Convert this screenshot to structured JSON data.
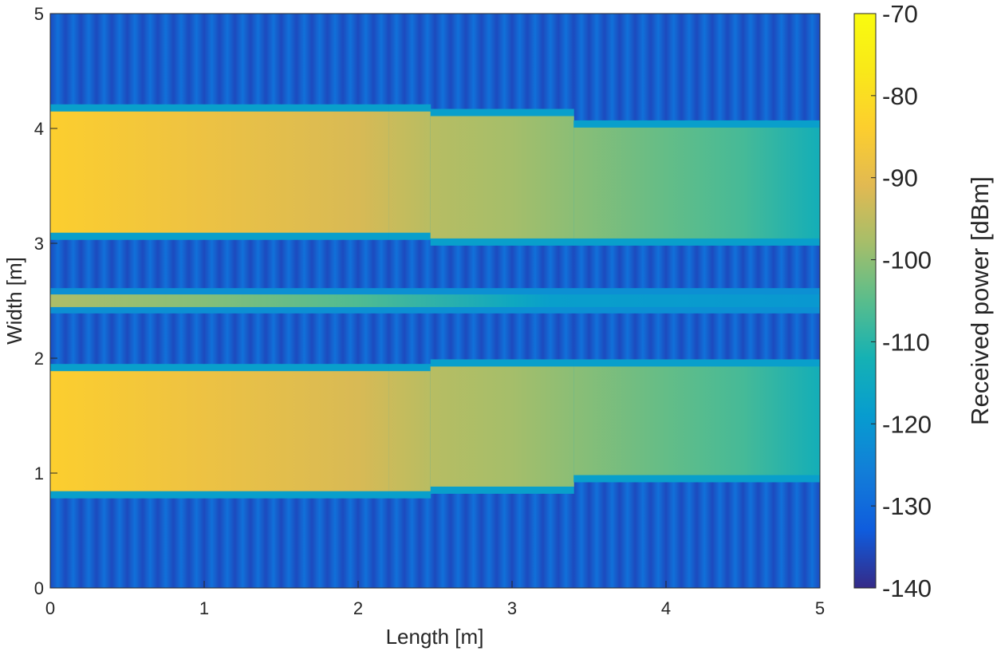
{
  "chart_data": {
    "type": "heatmap",
    "title": "",
    "xlabel": "Length [m]",
    "ylabel": "Width [m]",
    "xlim": [
      0,
      5
    ],
    "ylim": [
      0,
      5
    ],
    "x_ticks": [
      0,
      1,
      2,
      3,
      4,
      5
    ],
    "y_ticks": [
      0,
      1,
      2,
      3,
      4,
      5
    ],
    "grid": false,
    "colormap": "parula",
    "colorbar": {
      "label": "Received power [dBm]",
      "range": [
        -140,
        -70
      ],
      "ticks": [
        -70,
        -80,
        -90,
        -100,
        -110,
        -120,
        -130,
        -140
      ]
    },
    "background": {
      "value_dBm": -133,
      "pattern": "vertical stripes, period approx. 0.1 m",
      "stripe_value_range_dBm": [
        -136,
        -128
      ]
    },
    "bands": [
      {
        "name": "strip y 0.8-1.95",
        "edges": [
          {
            "x_from": 0,
            "x_to": 2.2,
            "y_bottom": 0.78,
            "y_top": 1.95
          },
          {
            "x_from": 2.2,
            "x_to": 2.47,
            "y_bottom": 0.78,
            "y_top": 1.95
          },
          {
            "x_from": 2.47,
            "x_to": 3.4,
            "y_bottom": 0.82,
            "y_top": 1.99
          },
          {
            "x_from": 3.4,
            "x_to": 5,
            "y_bottom": 0.92,
            "y_top": 1.99
          }
        ],
        "core_value_profile_dBm": [
          [
            0,
            -84
          ],
          [
            1,
            -88
          ],
          [
            2,
            -92
          ],
          [
            2.5,
            -96
          ],
          [
            3,
            -98
          ],
          [
            4,
            -104
          ],
          [
            4.5,
            -107
          ],
          [
            5,
            -113
          ]
        ],
        "edge_value_dBm": -118
      },
      {
        "name": "strip y 2.4-2.6",
        "edges": [
          {
            "x_from": 0,
            "x_to": 5,
            "y_bottom": 2.39,
            "y_top": 2.61
          }
        ],
        "core_value_profile_dBm": [
          [
            0,
            -97
          ],
          [
            1,
            -101
          ],
          [
            2,
            -106
          ],
          [
            3,
            -115
          ],
          [
            3.25,
            -118
          ],
          [
            5,
            -120
          ]
        ],
        "edge_value_dBm": -122
      },
      {
        "name": "strip y 3.0-4.2",
        "edges": [
          {
            "x_from": 0,
            "x_to": 2.2,
            "y_bottom": 3.03,
            "y_top": 4.21
          },
          {
            "x_from": 2.2,
            "x_to": 2.47,
            "y_bottom": 3.03,
            "y_top": 4.21
          },
          {
            "x_from": 2.47,
            "x_to": 3.4,
            "y_bottom": 2.98,
            "y_top": 4.17
          },
          {
            "x_from": 3.4,
            "x_to": 5,
            "y_bottom": 2.98,
            "y_top": 4.07
          }
        ],
        "core_value_profile_dBm": [
          [
            0,
            -84
          ],
          [
            1,
            -88
          ],
          [
            2,
            -92
          ],
          [
            2.5,
            -96
          ],
          [
            3,
            -98
          ],
          [
            4,
            -104
          ],
          [
            4.5,
            -107
          ],
          [
            5,
            -113
          ]
        ],
        "edge_value_dBm": -118
      }
    ]
  }
}
